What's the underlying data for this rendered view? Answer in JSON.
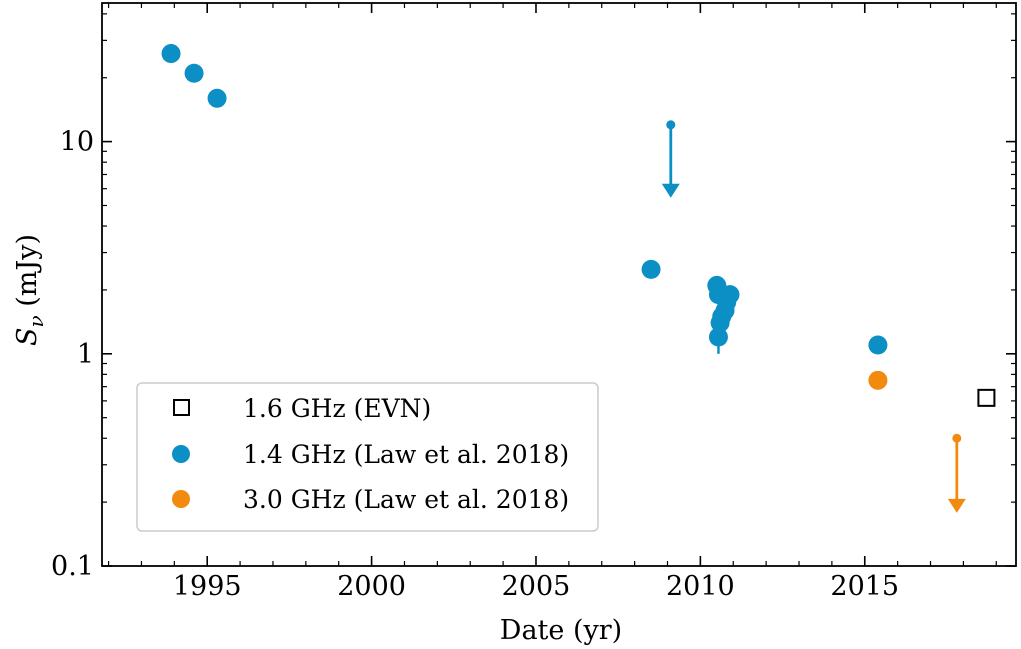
{
  "chart_data": {
    "type": "scatter",
    "title": "",
    "xlabel": "Date (yr)",
    "ylabel_main": "S",
    "ylabel_sub": "ν",
    "ylabel_unit": " (mJy)",
    "xlim": [
      1991.8,
      2019.6
    ],
    "ylim": [
      0.1,
      45
    ],
    "yscale": "log",
    "xticks": [
      1995,
      2000,
      2005,
      2010,
      2015
    ],
    "xtick_labels": [
      "1995",
      "2000",
      "2005",
      "2010",
      "2015"
    ],
    "yticks": [
      0.1,
      1,
      10
    ],
    "ytick_labels": [
      "0.1",
      "1",
      "10"
    ],
    "colors": {
      "blue": "#0C8FC4",
      "orange": "#F38A10",
      "black": "#000000"
    },
    "series": [
      {
        "name": "1.6 GHz (EVN)",
        "marker": "open-square",
        "color": "#000000",
        "points": [
          {
            "x": 2018.7,
            "y": 0.62
          }
        ],
        "upper_limits": []
      },
      {
        "name": "1.4 GHz (Law et al. 2018)",
        "marker": "filled-circle",
        "color": "#0C8FC4",
        "points": [
          {
            "x": 1993.9,
            "y": 26.0
          },
          {
            "x": 1994.6,
            "y": 21.0
          },
          {
            "x": 1995.3,
            "y": 16.0
          },
          {
            "x": 2008.5,
            "y": 2.5
          },
          {
            "x": 2010.5,
            "y": 2.1
          },
          {
            "x": 2010.55,
            "y": 1.9
          },
          {
            "x": 2010.9,
            "y": 1.9
          },
          {
            "x": 2010.8,
            "y": 1.75
          },
          {
            "x": 2010.75,
            "y": 1.6
          },
          {
            "x": 2010.65,
            "y": 1.5
          },
          {
            "x": 2010.6,
            "y": 1.4
          },
          {
            "x": 2010.55,
            "y": 1.2
          },
          {
            "x": 2015.4,
            "y": 1.1
          }
        ],
        "error_bars": [
          {
            "x": 2010.55,
            "low": 1.0,
            "high": 1.4
          }
        ],
        "upper_limits": [
          {
            "x": 2009.1,
            "from": 12.0,
            "to": 5.5
          }
        ]
      },
      {
        "name": "3.0 GHz (Law et al. 2018)",
        "marker": "filled-circle",
        "color": "#F38A10",
        "points": [
          {
            "x": 2015.4,
            "y": 0.75
          }
        ],
        "upper_limits": [
          {
            "x": 2017.8,
            "from": 0.4,
            "to": 0.18
          }
        ]
      }
    ],
    "legend": {
      "position": "lower-left",
      "entries": [
        "1.6 GHz (EVN)",
        "1.4 GHz (Law et al. 2018)",
        "3.0 GHz (Law et al. 2018)"
      ]
    }
  }
}
